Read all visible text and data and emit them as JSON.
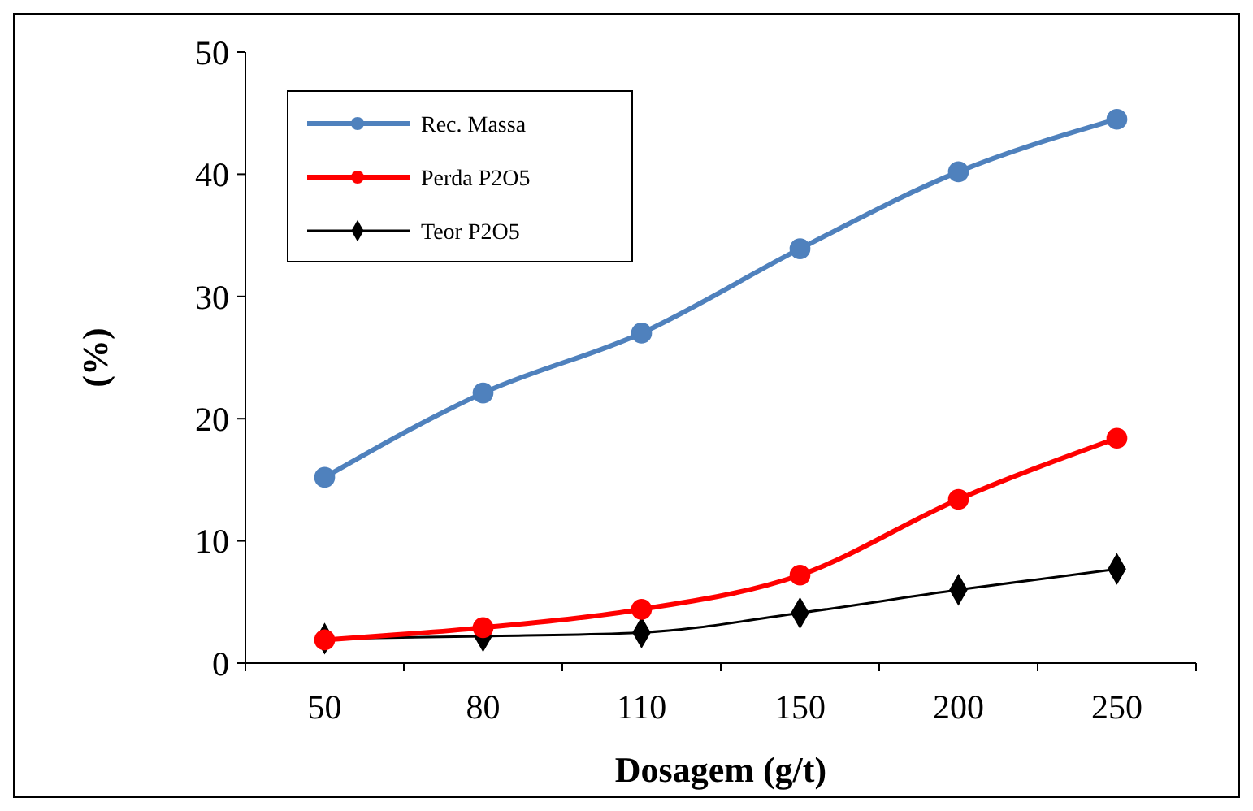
{
  "chart_data": {
    "type": "line",
    "xlabel": "Dosagem (g/t)",
    "ylabel": "(%)",
    "categories": [
      "50",
      "80",
      "110",
      "150",
      "200",
      "250"
    ],
    "ylim": [
      0,
      50
    ],
    "yticks": [
      0,
      10,
      20,
      30,
      40,
      50
    ],
    "grid": false,
    "legend": "top left",
    "line_style": "solid",
    "series": [
      {
        "name": "Rec. Massa",
        "color": "#4f81bd",
        "marker": "circle",
        "values": [
          15.2,
          22.1,
          27.0,
          33.9,
          40.2,
          44.5
        ]
      },
      {
        "name": "Perda P2O5",
        "color": "#ff0000",
        "marker": "circle",
        "values": [
          1.9,
          2.9,
          4.4,
          7.2,
          13.4,
          18.4
        ]
      },
      {
        "name": "Teor P2O5",
        "color": "#000000",
        "marker": "diamond",
        "values": [
          2.0,
          2.2,
          2.5,
          4.1,
          6.0,
          7.7
        ]
      }
    ]
  }
}
